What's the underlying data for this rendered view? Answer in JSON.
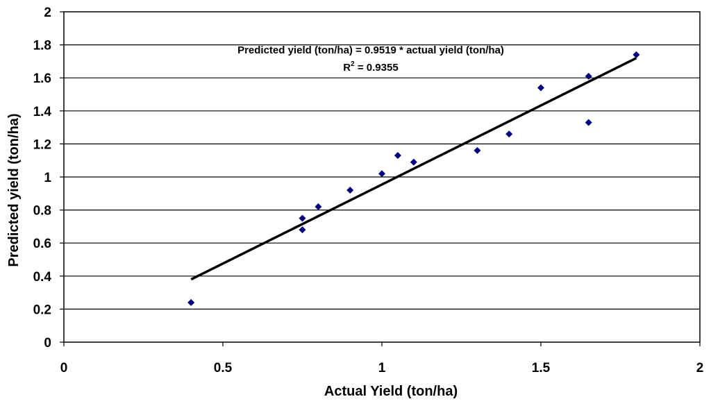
{
  "chart_data": {
    "type": "scatter",
    "title": "",
    "xlabel": "Actual Yield (ton/ha)",
    "ylabel": "Predicted yield (ton/ha)",
    "xlim": [
      0,
      2
    ],
    "ylim": [
      0,
      2
    ],
    "xticks": [
      "0",
      "0.5",
      "1",
      "1.5",
      "2"
    ],
    "yticks": [
      "0",
      "0.2",
      "0.4",
      "0.6",
      "0.8",
      "1",
      "1.2",
      "1.4",
      "1.6",
      "1.8",
      "2"
    ],
    "grid": "horizontal",
    "legend": "none",
    "marker_color": "#00007f",
    "series": [
      {
        "points": [
          {
            "x": 0.4,
            "y": 0.24
          },
          {
            "x": 0.75,
            "y": 0.75
          },
          {
            "x": 0.75,
            "y": 0.68
          },
          {
            "x": 0.8,
            "y": 0.82
          },
          {
            "x": 0.9,
            "y": 0.92
          },
          {
            "x": 1.0,
            "y": 1.02
          },
          {
            "x": 1.05,
            "y": 1.13
          },
          {
            "x": 1.1,
            "y": 1.09
          },
          {
            "x": 1.3,
            "y": 1.16
          },
          {
            "x": 1.4,
            "y": 1.26
          },
          {
            "x": 1.5,
            "y": 1.54
          },
          {
            "x": 1.65,
            "y": 1.61
          },
          {
            "x": 1.65,
            "y": 1.33
          },
          {
            "x": 1.8,
            "y": 1.74
          }
        ]
      }
    ],
    "trendline": {
      "slope": 0.9519,
      "x_start": 0.4,
      "x_end": 1.8,
      "y_start": 0.38,
      "y_end": 1.72,
      "color": "#000000"
    },
    "annotations": {
      "equation": "Predicted yield (ton/ha) = 0.9519 * actual yield (ton/ha)",
      "r2_label": "R",
      "r2_sup": "2",
      "r2_value": " = 0.9355"
    }
  }
}
